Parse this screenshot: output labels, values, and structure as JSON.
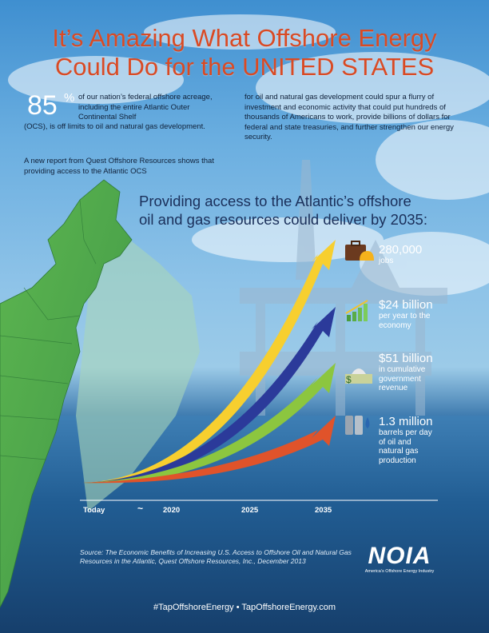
{
  "title": {
    "line1": "It’s Amazing What Offshore Energy",
    "line2": "Could Do for the   UNITED STATES"
  },
  "intro": {
    "stat_value": "85",
    "stat_unit": "%",
    "text1": "of our nation’s federal offshore acreage, including the entire Atlantic Outer Continental Shelf",
    "text1b": "(OCS), is off limits to oil and natural gas development.",
    "text2": "A new report from Quest Offshore Resources shows that providing access to the Atlantic OCS",
    "text3": "for oil and natural gas development could spur a flurry of investment and economic activity that could put hundreds of thousands of Americans to work, provide billions of dollars for federal and state treasuries, and further strengthen our energy security."
  },
  "subhead": {
    "line1": "Providing access to the Atlantic’s offshore",
    "line2": "oil and gas resources could deliver by 2035:"
  },
  "metrics": [
    {
      "value": "280,000",
      "desc": "jobs",
      "icon": "briefcase-hardhat-icon",
      "color": "#f7cf2f"
    },
    {
      "value": "$24 billion",
      "desc": "per year to the economy",
      "icon": "growth-chart-icon",
      "color": "#2b3a9a"
    },
    {
      "value": "$51 billion",
      "desc": "in cumulative government revenue",
      "icon": "capitol-money-icon",
      "color": "#8cc63f"
    },
    {
      "value": "1.3 million",
      "desc": "barrels per day of oil and natural gas production",
      "icon": "oil-barrels-icon",
      "color": "#e0532a"
    }
  ],
  "timeline": {
    "start": "Today",
    "break_mark": "~",
    "ticks": [
      "2020",
      "2025",
      "2035"
    ]
  },
  "source": "Source: The Economic Benefits of Increasing U.S. Access to Offshore Oil and Natural Gas Resources in the Atlantic, Quest Offshore Resources, Inc., December 2013",
  "logo": {
    "mark": "NOIA",
    "tagline": "America’s Offshore Energy Industry"
  },
  "footer": "#TapOffshoreEnergy  •  TapOffshoreEnergy.com",
  "colors": {
    "title": "#d94a24",
    "land": "#4fa64a",
    "atlantic_zone": "#9cc8b0"
  }
}
